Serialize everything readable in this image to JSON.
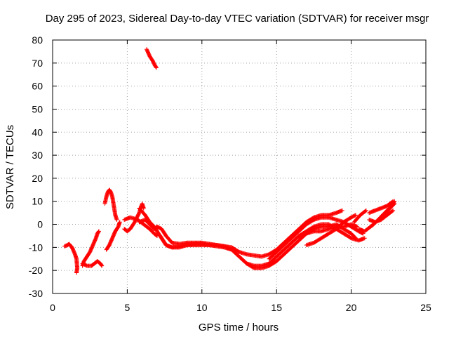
{
  "chart_data": {
    "type": "scatter",
    "title": "Day 295 of 2023, Sidereal Day-to-day VTEC variation (SDTVAR) for receiver msgr",
    "xlabel": "GPS time / hours",
    "ylabel": "SDTVAR / TECUs",
    "xlim": [
      0,
      25
    ],
    "ylim": [
      -30,
      80
    ],
    "xticks": [
      "0",
      "5",
      "10",
      "15",
      "20",
      "25"
    ],
    "xtick_values": [
      0,
      5,
      10,
      15,
      20,
      25
    ],
    "yticks": [
      "-30",
      "-20",
      "-10",
      "0",
      "10",
      "20",
      "30",
      "40",
      "50",
      "60",
      "70",
      "80"
    ],
    "ytick_values": [
      -30,
      -20,
      -10,
      0,
      10,
      20,
      30,
      40,
      50,
      60,
      70,
      80
    ],
    "grid": true,
    "marker": "plus",
    "series": [
      {
        "name": "SDTVAR",
        "color": "#ff0000",
        "tracks": [
          [
            [
              0.8,
              -9.5
            ],
            [
              1.0,
              -9
            ],
            [
              1.1,
              -8.5
            ],
            [
              1.3,
              -10
            ],
            [
              1.5,
              -13
            ],
            [
              1.6,
              -15
            ],
            [
              1.65,
              -19
            ],
            [
              1.6,
              -21
            ]
          ],
          [
            [
              2.0,
              -18
            ],
            [
              2.1,
              -16
            ],
            [
              2.3,
              -14
            ],
            [
              2.5,
              -12
            ],
            [
              2.7,
              -9
            ],
            [
              2.9,
              -6
            ],
            [
              3.0,
              -4
            ],
            [
              3.1,
              -3
            ]
          ],
          [
            [
              2.0,
              -17
            ],
            [
              2.3,
              -18
            ],
            [
              2.6,
              -18
            ],
            [
              2.8,
              -17
            ],
            [
              3.0,
              -16
            ],
            [
              3.2,
              -17
            ],
            [
              3.3,
              -18
            ]
          ],
          [
            [
              3.6,
              -11
            ],
            [
              3.8,
              -9
            ],
            [
              4.0,
              -6
            ],
            [
              4.2,
              -3
            ],
            [
              4.4,
              -1
            ],
            [
              4.5,
              1
            ]
          ],
          [
            [
              3.5,
              9
            ],
            [
              3.6,
              12
            ],
            [
              3.7,
              14
            ],
            [
              3.8,
              15
            ],
            [
              3.9,
              14
            ],
            [
              4.0,
              12
            ],
            [
              4.1,
              8
            ],
            [
              4.2,
              4
            ],
            [
              4.3,
              2
            ]
          ],
          [
            [
              4.8,
              -2
            ],
            [
              5.0,
              -3
            ],
            [
              5.2,
              -2
            ],
            [
              5.5,
              1
            ],
            [
              5.8,
              5
            ],
            [
              6.0,
              9
            ],
            [
              6.1,
              7
            ]
          ],
          [
            [
              4.8,
              2
            ],
            [
              5.2,
              3
            ],
            [
              5.7,
              2
            ],
            [
              6.1,
              0
            ],
            [
              6.5,
              -2
            ],
            [
              6.8,
              -4
            ],
            [
              7.0,
              -5
            ]
          ],
          [
            [
              5.8,
              7
            ],
            [
              6.2,
              4
            ],
            [
              6.5,
              1
            ],
            [
              6.8,
              -1
            ],
            [
              7.0,
              -3
            ],
            [
              7.3,
              -6
            ],
            [
              7.6,
              -9
            ],
            [
              8.0,
              -10
            ],
            [
              8.5,
              -9.5
            ],
            [
              9.0,
              -9
            ],
            [
              9.5,
              -8.5
            ],
            [
              10.0,
              -8.5
            ],
            [
              10.5,
              -9
            ],
            [
              11.0,
              -9
            ],
            [
              11.5,
              -9.5
            ],
            [
              12.0,
              -10
            ],
            [
              12.5,
              -12
            ],
            [
              13.0,
              -13
            ],
            [
              13.5,
              -13.5
            ],
            [
              14.0,
              -14
            ],
            [
              14.5,
              -13
            ],
            [
              15.0,
              -11
            ],
            [
              15.5,
              -8
            ],
            [
              16.0,
              -5
            ],
            [
              16.5,
              -2
            ],
            [
              17.0,
              1
            ],
            [
              17.5,
              3
            ],
            [
              18.0,
              4
            ],
            [
              18.5,
              4
            ],
            [
              19.0,
              5
            ],
            [
              19.4,
              6
            ]
          ],
          [
            [
              5.8,
              1
            ],
            [
              6.2,
              2
            ],
            [
              6.5,
              0
            ],
            [
              6.8,
              -2
            ],
            [
              7.0,
              -1
            ],
            [
              7.3,
              -2
            ],
            [
              7.6,
              -5
            ],
            [
              8.0,
              -8
            ],
            [
              8.5,
              -8.5
            ],
            [
              9.0,
              -8
            ],
            [
              9.5,
              -8
            ],
            [
              10.0,
              -8
            ],
            [
              10.5,
              -8.5
            ],
            [
              11.0,
              -9
            ],
            [
              11.5,
              -9.5
            ],
            [
              12.0,
              -11
            ],
            [
              12.5,
              -14
            ],
            [
              13.0,
              -17
            ],
            [
              13.5,
              -18
            ],
            [
              14.0,
              -18
            ],
            [
              14.5,
              -17
            ],
            [
              15.0,
              -14
            ],
            [
              15.5,
              -11
            ],
            [
              16.0,
              -8
            ],
            [
              16.5,
              -5
            ],
            [
              17.0,
              -3
            ],
            [
              17.5,
              -1
            ],
            [
              18.0,
              0
            ],
            [
              18.5,
              0
            ],
            [
              19.0,
              -2
            ],
            [
              19.5,
              -4
            ],
            [
              20.0,
              -6
            ],
            [
              20.5,
              -7
            ],
            [
              20.9,
              -6
            ]
          ],
          [
            [
              7.2,
              -5
            ],
            [
              7.6,
              -9
            ],
            [
              8.0,
              -10
            ],
            [
              8.5,
              -10
            ],
            [
              9.0,
              -9
            ],
            [
              9.5,
              -9
            ],
            [
              10.0,
              -9
            ],
            [
              10.5,
              -9
            ],
            [
              11.0,
              -9.5
            ],
            [
              11.5,
              -10
            ],
            [
              12.0,
              -11
            ],
            [
              12.5,
              -14
            ],
            [
              13.0,
              -17
            ],
            [
              13.5,
              -19
            ],
            [
              14.0,
              -19
            ],
            [
              14.5,
              -18
            ],
            [
              15.0,
              -16
            ],
            [
              15.5,
              -13
            ],
            [
              16.0,
              -10
            ],
            [
              16.5,
              -7
            ],
            [
              17.0,
              -4
            ],
            [
              17.5,
              -2
            ],
            [
              18.0,
              -1
            ],
            [
              18.5,
              -1
            ],
            [
              19.0,
              0
            ],
            [
              19.5,
              -2
            ],
            [
              20.0,
              -4
            ],
            [
              20.3,
              -6
            ]
          ],
          [
            [
              14.5,
              -15
            ],
            [
              15.0,
              -12
            ],
            [
              15.5,
              -9
            ],
            [
              16.0,
              -6
            ],
            [
              16.5,
              -3
            ],
            [
              17.0,
              0
            ],
            [
              17.5,
              2
            ],
            [
              18.0,
              3
            ],
            [
              18.5,
              3
            ],
            [
              19.0,
              2
            ],
            [
              19.5,
              1
            ],
            [
              20.0,
              -1
            ],
            [
              20.5,
              -3
            ],
            [
              20.8,
              -4
            ]
          ],
          [
            [
              16.5,
              -6
            ],
            [
              17.0,
              -4
            ],
            [
              17.5,
              -3
            ],
            [
              18.0,
              -3
            ],
            [
              18.5,
              -2
            ],
            [
              19.0,
              -1
            ],
            [
              19.5,
              -1
            ],
            [
              20.0,
              0
            ],
            [
              20.4,
              -1
            ]
          ],
          [
            [
              17.0,
              -9
            ],
            [
              17.5,
              -8
            ],
            [
              18.0,
              -6
            ],
            [
              18.5,
              -4
            ],
            [
              19.0,
              -2
            ],
            [
              19.5,
              1
            ],
            [
              20.0,
              3
            ],
            [
              20.3,
              4
            ]
          ],
          [
            [
              20.2,
              1
            ],
            [
              20.6,
              4
            ],
            [
              21.0,
              6
            ]
          ],
          [
            [
              20.5,
              -2
            ],
            [
              20.9,
              -3
            ],
            [
              21.3,
              -1
            ],
            [
              21.5,
              0
            ]
          ],
          [
            [
              21.2,
              2
            ],
            [
              21.6,
              1
            ],
            [
              22.0,
              2
            ],
            [
              22.4,
              4
            ],
            [
              22.8,
              6
            ]
          ],
          [
            [
              21.2,
              5
            ],
            [
              21.6,
              6
            ],
            [
              22.0,
              7
            ],
            [
              22.4,
              8
            ],
            [
              22.8,
              10
            ]
          ],
          [
            [
              21.5,
              0
            ],
            [
              21.8,
              2
            ],
            [
              22.1,
              4
            ],
            [
              22.4,
              6
            ],
            [
              22.7,
              8
            ],
            [
              22.9,
              10
            ]
          ],
          [
            [
              22.3,
              5
            ],
            [
              22.6,
              7
            ],
            [
              22.9,
              9
            ]
          ],
          [
            [
              6.3,
              76
            ],
            [
              6.5,
              73
            ],
            [
              6.7,
              71
            ],
            [
              6.85,
              69
            ],
            [
              6.95,
              68
            ]
          ]
        ]
      }
    ]
  }
}
